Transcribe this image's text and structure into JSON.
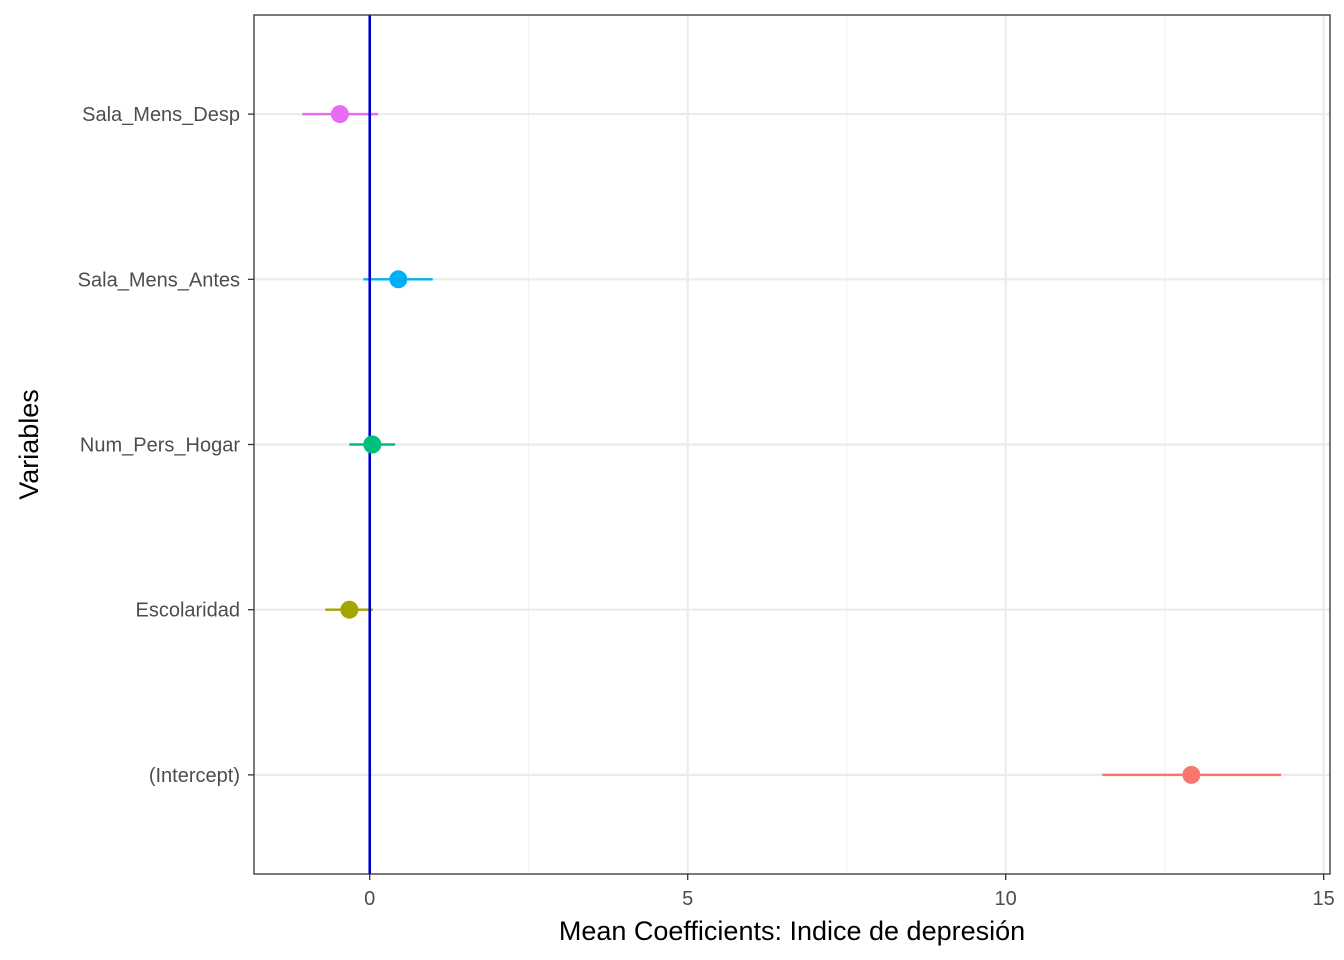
{
  "chart_data": {
    "type": "scatter",
    "subtype": "coefficient-interval-plot",
    "xlabel": "Mean Coefficients: Indice de depresión",
    "ylabel": "Variables",
    "xlim": [
      -1.82,
      15.1
    ],
    "x_ticks": [
      0,
      5,
      10,
      15
    ],
    "x_tick_labels": [
      "0",
      "5",
      "10",
      "15"
    ],
    "x_minor_ticks": [
      2.5,
      7.5,
      12.5
    ],
    "categories": [
      "(Intercept)",
      "Escolaridad",
      "Num_Pers_Hogar",
      "Sala_Mens_Antes",
      "Sala_Mens_Desp"
    ],
    "points": [
      {
        "variable": "(Intercept)",
        "estimate": 12.92,
        "low": 11.52,
        "high": 14.33,
        "color": "#F8766D"
      },
      {
        "variable": "Escolaridad",
        "estimate": -0.32,
        "low": -0.7,
        "high": 0.05,
        "color": "#A3A500"
      },
      {
        "variable": "Num_Pers_Hogar",
        "estimate": 0.04,
        "low": -0.32,
        "high": 0.4,
        "color": "#00BF7D"
      },
      {
        "variable": "Sala_Mens_Antes",
        "estimate": 0.45,
        "low": -0.1,
        "high": 0.99,
        "color": "#00B0F6"
      },
      {
        "variable": "Sala_Mens_Desp",
        "estimate": -0.47,
        "low": -1.06,
        "high": 0.13,
        "color": "#E76BF3"
      }
    ],
    "reference_line": {
      "x": 0,
      "color": "#0000CC"
    },
    "grid": true,
    "legend": "none",
    "theme": {
      "panel_border": "#333333",
      "grid_major": "#EBEBEB",
      "grid_minor": "#F2F2F2",
      "tick_label_color": "#4D4D4D"
    }
  }
}
